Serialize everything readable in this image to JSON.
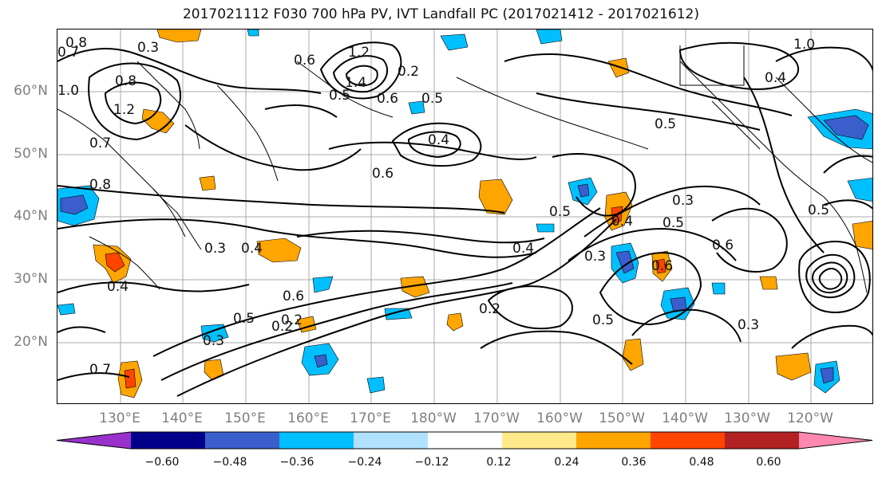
{
  "title": "2017021112 F030 700 hPa PV, IVT Landfall PC (2017021412 - 2017021612)",
  "lat_labels": [
    "60°N",
    "50°N",
    "40°N",
    "30°N",
    "20°N"
  ],
  "lon_labels": [
    "130°E",
    "140°E",
    "150°E",
    "160°E",
    "170°E",
    "180°W",
    "170°W",
    "160°W",
    "150°W",
    "140°W",
    "130°W",
    "120°W"
  ],
  "contour_labels": [
    "0.8",
    "0.7",
    "0.3",
    "1.0",
    "1.2",
    "0.8",
    "0.6",
    "1.2",
    "1.4",
    "0.5",
    "0.6",
    "0.5",
    "0.4",
    "0.2",
    "1.0",
    "0.4",
    "0.5",
    "0.6",
    "0.3",
    "0.4",
    "0.3",
    "0.5",
    "0.4",
    "0.5",
    "0.3",
    "0.6",
    "0.6",
    "0.6",
    "0.2",
    "0.5",
    "0.2",
    "0.5",
    "0.3",
    "0.4",
    "0.4",
    "0.7",
    "0.8",
    "0.3",
    "0.2",
    "0.7",
    "0.5"
  ],
  "colorbar": {
    "colors": [
      "#9932cc",
      "#00008b",
      "#3a5fcd",
      "#00bfff",
      "#b0e2ff",
      "#ffffff",
      "#ffe98a",
      "#ffa500",
      "#ff4500",
      "#b22222",
      "#ff88b0"
    ],
    "tick_labels": [
      "−0.60",
      "−0.48",
      "−0.36",
      "−0.24",
      "−0.12",
      "0.12",
      "0.24",
      "0.36",
      "0.48",
      "0.60"
    ]
  }
}
